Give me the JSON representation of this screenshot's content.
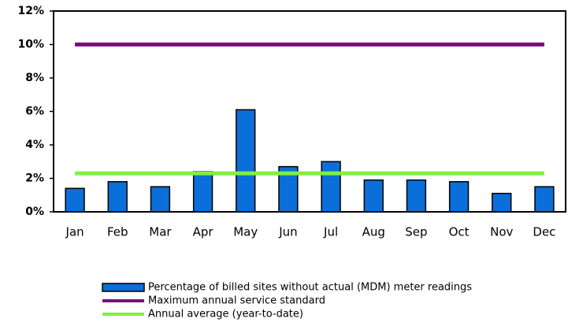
{
  "chart_data": {
    "type": "bar",
    "categories": [
      "Jan",
      "Feb",
      "Mar",
      "Apr",
      "May",
      "Jun",
      "Jul",
      "Aug",
      "Sep",
      "Oct",
      "Nov",
      "Dec"
    ],
    "series": [
      {
        "name": "Percentage of billed sites without actual (MDM) meter readings",
        "type": "bar",
        "color": "#0a6fd8",
        "values": [
          1.4,
          1.8,
          1.5,
          2.4,
          6.1,
          2.7,
          3.0,
          1.9,
          1.9,
          1.8,
          1.1,
          1.5
        ]
      },
      {
        "name": "Maximum annual service standard",
        "type": "line",
        "color": "#7b0f7e",
        "values": [
          10,
          10,
          10,
          10,
          10,
          10,
          10,
          10,
          10,
          10,
          10,
          10
        ]
      },
      {
        "name": "Annual average (year-to-date)",
        "type": "line",
        "color": "#80f040",
        "values": [
          2.3,
          2.3,
          2.3,
          2.3,
          2.3,
          2.3,
          2.3,
          2.3,
          2.3,
          2.3,
          2.3,
          2.3
        ]
      }
    ],
    "ylim": [
      0,
      12
    ],
    "yticks": [
      {
        "value": 0,
        "label": "0%"
      },
      {
        "value": 2,
        "label": "2%"
      },
      {
        "value": 4,
        "label": "4%"
      },
      {
        "value": 6,
        "label": "6%"
      },
      {
        "value": 8,
        "label": "8%"
      },
      {
        "value": 10,
        "label": "10%"
      },
      {
        "value": 12,
        "label": "12%"
      }
    ],
    "grid": false,
    "legend": "bottom"
  }
}
